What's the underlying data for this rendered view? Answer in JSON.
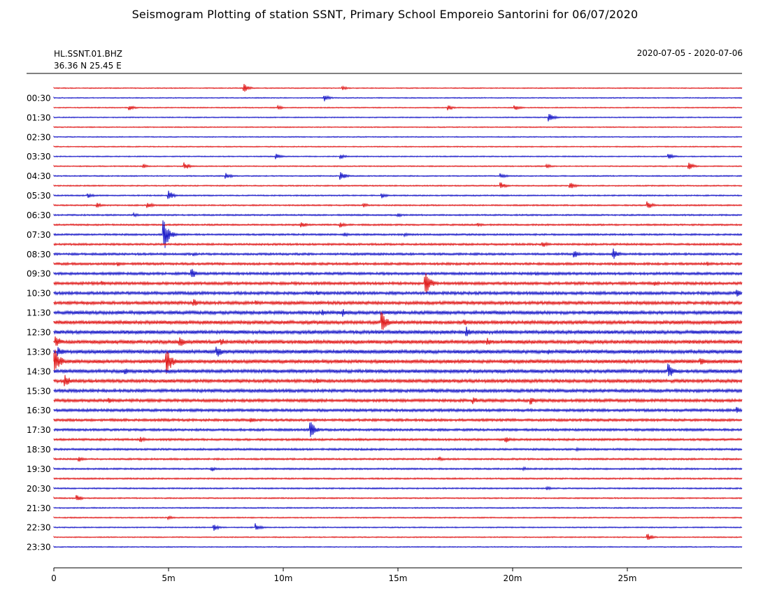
{
  "chart_data": {
    "type": "line",
    "title": "Seismogram Plotting of station SSNT, Primary School Emporeio Santorini for 06/07/2020",
    "station_id": "HL.SSNT.01.BHZ",
    "coordinates": "36.36 N 25.45 E",
    "date_range": "2020-07-05 - 2020-07-06",
    "xlabel": "",
    "ylabel": "",
    "x_unit": "minutes",
    "xlim": [
      0,
      30
    ],
    "x_ticks": [
      {
        "value": 0,
        "label": "0"
      },
      {
        "value": 5,
        "label": "5m"
      },
      {
        "value": 10,
        "label": "10m"
      },
      {
        "value": 15,
        "label": "15m"
      },
      {
        "value": 20,
        "label": "20m"
      },
      {
        "value": 25,
        "label": "25m"
      }
    ],
    "trace_interval_minutes": 30,
    "trace_count": 48,
    "trace_colors": [
      "#e01b1b",
      "#1a1ac8"
    ],
    "y_tick_labels": [
      "00:30",
      "01:30",
      "02:30",
      "03:30",
      "04:30",
      "05:30",
      "06:30",
      "07:30",
      "08:30",
      "09:30",
      "10:30",
      "11:30",
      "12:30",
      "13:30",
      "14:30",
      "15:30",
      "16:30",
      "17:30",
      "18:30",
      "19:30",
      "20:30",
      "21:30",
      "22:30",
      "23:30"
    ],
    "events": [
      {
        "trace": 0,
        "minute": 8.3,
        "amplitude": 6
      },
      {
        "trace": 0,
        "minute": 12.6,
        "amplitude": 3
      },
      {
        "trace": 1,
        "minute": 11.8,
        "amplitude": 5
      },
      {
        "trace": 2,
        "minute": 3.3,
        "amplitude": 4
      },
      {
        "trace": 2,
        "minute": 9.8,
        "amplitude": 3
      },
      {
        "trace": 2,
        "minute": 17.2,
        "amplitude": 4
      },
      {
        "trace": 2,
        "minute": 20.1,
        "amplitude": 4
      },
      {
        "trace": 3,
        "minute": 21.6,
        "amplitude": 6
      },
      {
        "trace": 7,
        "minute": 9.7,
        "amplitude": 4
      },
      {
        "trace": 7,
        "minute": 12.5,
        "amplitude": 4
      },
      {
        "trace": 7,
        "minute": 26.8,
        "amplitude": 6
      },
      {
        "trace": 8,
        "minute": 3.9,
        "amplitude": 3
      },
      {
        "trace": 8,
        "minute": 5.7,
        "amplitude": 6
      },
      {
        "trace": 8,
        "minute": 21.5,
        "amplitude": 3
      },
      {
        "trace": 8,
        "minute": 27.7,
        "amplitude": 5
      },
      {
        "trace": 9,
        "minute": 7.5,
        "amplitude": 5
      },
      {
        "trace": 9,
        "minute": 12.5,
        "amplitude": 7
      },
      {
        "trace": 9,
        "minute": 19.5,
        "amplitude": 4
      },
      {
        "trace": 10,
        "minute": 19.5,
        "amplitude": 5
      },
      {
        "trace": 10,
        "minute": 22.5,
        "amplitude": 6
      },
      {
        "trace": 11,
        "minute": 1.5,
        "amplitude": 4
      },
      {
        "trace": 11,
        "minute": 5.0,
        "amplitude": 8
      },
      {
        "trace": 11,
        "minute": 14.3,
        "amplitude": 4
      },
      {
        "trace": 12,
        "minute": 1.9,
        "amplitude": 4
      },
      {
        "trace": 12,
        "minute": 4.1,
        "amplitude": 5
      },
      {
        "trace": 12,
        "minute": 13.5,
        "amplitude": 4
      },
      {
        "trace": 12,
        "minute": 25.9,
        "amplitude": 6
      },
      {
        "trace": 13,
        "minute": 3.5,
        "amplitude": 3
      },
      {
        "trace": 13,
        "minute": 15.0,
        "amplitude": 3
      },
      {
        "trace": 14,
        "minute": 10.8,
        "amplitude": 5
      },
      {
        "trace": 14,
        "minute": 12.5,
        "amplitude": 4
      },
      {
        "trace": 14,
        "minute": 18.5,
        "amplitude": 3
      },
      {
        "trace": 15,
        "minute": 4.8,
        "amplitude": 24
      },
      {
        "trace": 15,
        "minute": 12.7,
        "amplitude": 3
      },
      {
        "trace": 15,
        "minute": 15.3,
        "amplitude": 4
      },
      {
        "trace": 16,
        "minute": 21.3,
        "amplitude": 5
      },
      {
        "trace": 17,
        "minute": 6.1,
        "amplitude": 3
      },
      {
        "trace": 17,
        "minute": 22.7,
        "amplitude": 6
      },
      {
        "trace": 17,
        "minute": 24.4,
        "amplitude": 8
      },
      {
        "trace": 18,
        "minute": 2.8,
        "amplitude": 4
      },
      {
        "trace": 18,
        "minute": 28.5,
        "amplitude": 3
      },
      {
        "trace": 19,
        "minute": 6.0,
        "amplitude": 9
      },
      {
        "trace": 19,
        "minute": 21.0,
        "amplitude": 3
      },
      {
        "trace": 20,
        "minute": 2.1,
        "amplitude": 4
      },
      {
        "trace": 20,
        "minute": 16.2,
        "amplitude": 18
      },
      {
        "trace": 20,
        "minute": 26.2,
        "amplitude": 4
      },
      {
        "trace": 21,
        "minute": 11.5,
        "amplitude": 4
      },
      {
        "trace": 21,
        "minute": 29.8,
        "amplitude": 5
      },
      {
        "trace": 22,
        "minute": 6.1,
        "amplitude": 6
      },
      {
        "trace": 22,
        "minute": 8.8,
        "amplitude": 4
      },
      {
        "trace": 23,
        "minute": 11.7,
        "amplitude": 5
      },
      {
        "trace": 23,
        "minute": 12.6,
        "amplitude": 6
      },
      {
        "trace": 24,
        "minute": 14.3,
        "amplitude": 16
      },
      {
        "trace": 24,
        "minute": 17.9,
        "amplitude": 5
      },
      {
        "trace": 25,
        "minute": 2.2,
        "amplitude": 4
      },
      {
        "trace": 25,
        "minute": 8.2,
        "amplitude": 3
      },
      {
        "trace": 25,
        "minute": 18.0,
        "amplitude": 8
      },
      {
        "trace": 26,
        "minute": 0.1,
        "amplitude": 10
      },
      {
        "trace": 26,
        "minute": 5.5,
        "amplitude": 8
      },
      {
        "trace": 26,
        "minute": 7.3,
        "amplitude": 6
      },
      {
        "trace": 26,
        "minute": 18.9,
        "amplitude": 6
      },
      {
        "trace": 27,
        "minute": 0.2,
        "amplitude": 8
      },
      {
        "trace": 27,
        "minute": 7.1,
        "amplitude": 10
      },
      {
        "trace": 27,
        "minute": 21.6,
        "amplitude": 4
      },
      {
        "trace": 28,
        "minute": 0.0,
        "amplitude": 26
      },
      {
        "trace": 28,
        "minute": 4.9,
        "amplitude": 22
      },
      {
        "trace": 28,
        "minute": 28.2,
        "amplitude": 6
      },
      {
        "trace": 29,
        "minute": 3.1,
        "amplitude": 5
      },
      {
        "trace": 29,
        "minute": 26.8,
        "amplitude": 12
      },
      {
        "trace": 30,
        "minute": 0.5,
        "amplitude": 10
      },
      {
        "trace": 30,
        "minute": 11.5,
        "amplitude": 4
      },
      {
        "trace": 31,
        "minute": 16.5,
        "amplitude": 4
      },
      {
        "trace": 32,
        "minute": 2.4,
        "amplitude": 4
      },
      {
        "trace": 32,
        "minute": 18.3,
        "amplitude": 6
      },
      {
        "trace": 32,
        "minute": 20.8,
        "amplitude": 6
      },
      {
        "trace": 33,
        "minute": 29.8,
        "amplitude": 5
      },
      {
        "trace": 34,
        "minute": 8.6,
        "amplitude": 4
      },
      {
        "trace": 35,
        "minute": 11.2,
        "amplitude": 12
      },
      {
        "trace": 36,
        "minute": 3.8,
        "amplitude": 4
      },
      {
        "trace": 36,
        "minute": 19.7,
        "amplitude": 5
      },
      {
        "trace": 37,
        "minute": 22.8,
        "amplitude": 3
      },
      {
        "trace": 38,
        "minute": 1.1,
        "amplitude": 4
      },
      {
        "trace": 38,
        "minute": 16.8,
        "amplitude": 4
      },
      {
        "trace": 39,
        "minute": 6.9,
        "amplitude": 4
      },
      {
        "trace": 39,
        "minute": 20.5,
        "amplitude": 3
      },
      {
        "trace": 41,
        "minute": 21.5,
        "amplitude": 3
      },
      {
        "trace": 42,
        "minute": 1.0,
        "amplitude": 5
      },
      {
        "trace": 44,
        "minute": 5.0,
        "amplitude": 3
      },
      {
        "trace": 45,
        "minute": 7.0,
        "amplitude": 5
      },
      {
        "trace": 45,
        "minute": 8.8,
        "amplitude": 6
      },
      {
        "trace": 46,
        "minute": 25.9,
        "amplitude": 5
      }
    ]
  }
}
